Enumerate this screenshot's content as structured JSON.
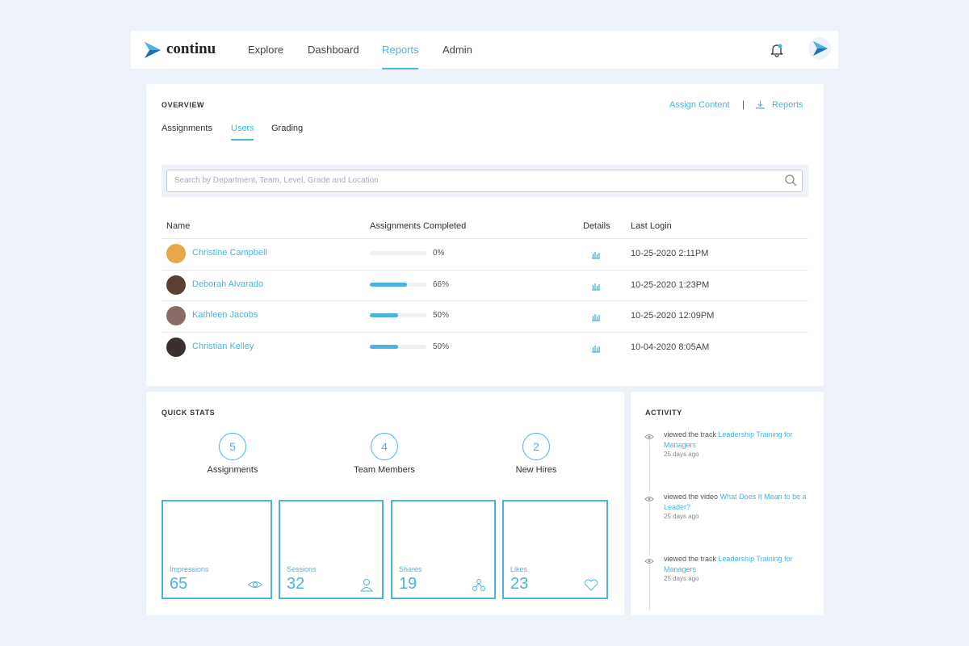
{
  "header": {
    "logo": "continu",
    "nav": [
      "Explore",
      "Dashboard",
      "Reports",
      "Admin"
    ]
  },
  "overview": {
    "title": "OVERVIEW",
    "actions": [
      "Assign Content",
      "Reports"
    ],
    "tabs": [
      "Assignments",
      "Users",
      "Grading"
    ],
    "search_placeholder": "Search by Department, Team, Level, Grade and Location",
    "columns": [
      "Name",
      "Assignments Completed",
      "Details",
      "Last Login"
    ],
    "rows": [
      {
        "name": "Christine Campbell",
        "completed": {
          "value": 0,
          "label": "0%"
        },
        "last_login": "10-25-2020 2:11PM"
      },
      {
        "name": "Deborah Alvarado",
        "completed": {
          "value": 66,
          "label": "66%"
        },
        "last_login": "10-25-2020 1:23PM"
      },
      {
        "name": "Kathleen Jacobs",
        "completed": {
          "value": 50,
          "label": "50%"
        },
        "last_login": "10-25-2020 12:09PM"
      },
      {
        "name": "Christian Kelley",
        "completed": {
          "value": 50,
          "label": "50%"
        },
        "last_login": "10-04-2020 8:05AM"
      }
    ]
  },
  "quick_stats": {
    "title": "QUICK STATS",
    "counters": [
      {
        "value": 5,
        "label": "Assignments"
      },
      {
        "value": 4,
        "label": "Team Members"
      },
      {
        "value": 2,
        "label": "New Hires"
      }
    ],
    "tiles": [
      {
        "label": "Impressions",
        "value": 65
      },
      {
        "label": "Sessions",
        "value": 32
      },
      {
        "label": "Shares",
        "value": 19
      },
      {
        "label": "Likes",
        "value": 23
      }
    ]
  },
  "activity": {
    "title": "ACTIVITY",
    "items": [
      {
        "action": "viewed the track",
        "link": "Leadership Training for Managers",
        "time": "25 days ago"
      },
      {
        "action": "viewed the video",
        "link": "What Does It Mean to be a Leader?",
        "time": "25 days ago"
      },
      {
        "action": "viewed the track",
        "link": "Leadership Training for Managers",
        "time": "25 days ago"
      }
    ]
  }
}
